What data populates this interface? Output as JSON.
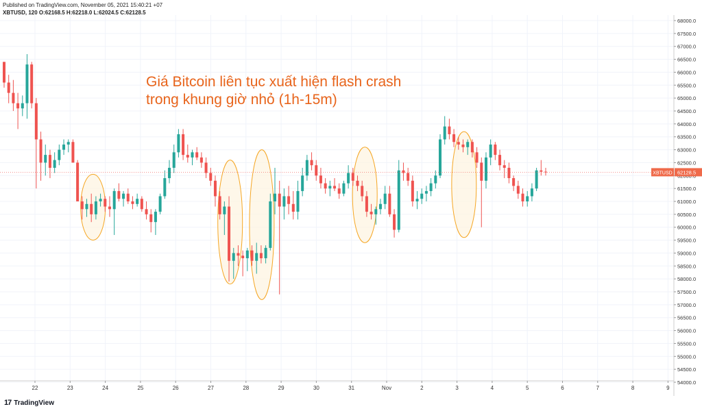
{
  "header": {
    "published": "Published on TradingView.com, November 05, 2021 15:40:21 +07",
    "ohlc": "XBTUSD, 120 O:62168.5 H:62218.0 L:62024.5 C:62128.5"
  },
  "footer": {
    "logo_mark": "17",
    "brand": "TradingView"
  },
  "colors": {
    "up": "#26a69a",
    "down": "#ef5350",
    "highlight_stroke": "#f5a623",
    "highlight_fill": "#fdf3e0",
    "price_label_bg": "#ef6a4a",
    "annotation": "#e8641b"
  },
  "chart_data": {
    "type": "candlestick",
    "symbol": "XBTUSD",
    "interval": "120",
    "title": "",
    "annotation": [
      "Giá Bitcoin liên tục xuất hiện flash crash",
      "trong khung giờ nhỏ (1h-15m)"
    ],
    "last_price": 62128.5,
    "last_price_label": "XBTUSD",
    "ylim": [
      54000,
      68000
    ],
    "y_ticks": [
      54000,
      54500,
      55000,
      55500,
      56000,
      56500,
      57000,
      57500,
      58000,
      58500,
      59000,
      59500,
      60000,
      60500,
      61000,
      61500,
      62000,
      62500,
      63000,
      63500,
      64000,
      64500,
      65000,
      65500,
      66000,
      66500,
      67000,
      67500,
      68000
    ],
    "y_tick_labels": [
      "54000.0",
      "54500.0",
      "55000.0",
      "55500.0",
      "56000.0",
      "56500.0",
      "57000.0",
      "57500.0",
      "58000.0",
      "58500.0",
      "59000.0",
      "59500.0",
      "60000.0",
      "60500.0",
      "61000.0",
      "61500.0",
      "62000.0",
      "62500.0",
      "63000.0",
      "63500.0",
      "64000.0",
      "64500.0",
      "65000.0",
      "65500.0",
      "66000.0",
      "66500.0",
      "67000.0",
      "67500.0",
      "68000.0"
    ],
    "xlim_days": [
      0.8,
      10.9
    ],
    "x_ticks": [
      {
        "day": 1,
        "label": "22"
      },
      {
        "day": 2,
        "label": "23"
      },
      {
        "day": 3,
        "label": "24"
      },
      {
        "day": 4,
        "label": "25"
      },
      {
        "day": 5,
        "label": "26"
      },
      {
        "day": 6,
        "label": "27"
      },
      {
        "day": 7,
        "label": "28"
      },
      {
        "day": 8,
        "label": "29"
      },
      {
        "day": 9,
        "label": "30"
      },
      {
        "day": 10,
        "label": "31"
      },
      {
        "day": 11,
        "label": "Nov"
      },
      {
        "day": 12,
        "label": "2"
      },
      {
        "day": 13,
        "label": "3"
      },
      {
        "day": 14,
        "label": "4"
      },
      {
        "day": 15,
        "label": "5"
      },
      {
        "day": 16,
        "label": "6"
      },
      {
        "day": 17,
        "label": "7"
      },
      {
        "day": 18,
        "label": "8"
      },
      {
        "day": 19,
        "label": "9"
      }
    ],
    "highlights": [
      {
        "day": 2.65,
        "low": 59500,
        "high": 62050
      },
      {
        "day": 6.55,
        "low": 57800,
        "high": 62600
      },
      {
        "day": 7.45,
        "low": 57200,
        "high": 63000
      },
      {
        "day": 10.38,
        "low": 59400,
        "high": 63100
      },
      {
        "day": 13.2,
        "low": 59600,
        "high": 63700
      }
    ],
    "candles": [
      [
        66400,
        66400,
        65400,
        65600
      ],
      [
        65600,
        65900,
        64800,
        65200
      ],
      [
        65200,
        65700,
        64500,
        64800
      ],
      [
        64800,
        65200,
        63800,
        64600
      ],
      [
        64600,
        65100,
        64300,
        64800
      ],
      [
        64800,
        66700,
        64200,
        66300
      ],
      [
        66300,
        66400,
        64600,
        64800
      ],
      [
        64800,
        65000,
        61500,
        63400
      ],
      [
        63400,
        63700,
        61800,
        62500
      ],
      [
        62500,
        63200,
        62000,
        62800
      ],
      [
        62800,
        63000,
        61900,
        62300
      ],
      [
        62300,
        62900,
        62100,
        62600
      ],
      [
        62600,
        63200,
        62400,
        63000
      ],
      [
        63000,
        63400,
        62800,
        63200
      ],
      [
        63200,
        63400,
        62900,
        63300
      ],
      [
        63300,
        63400,
        62500,
        62500
      ],
      [
        62500,
        62600,
        61000,
        61000
      ],
      [
        61000,
        61200,
        60300,
        60700
      ],
      [
        60700,
        61100,
        60400,
        60900
      ],
      [
        60900,
        61300,
        60200,
        60500
      ],
      [
        60500,
        61200,
        60300,
        61000
      ],
      [
        61000,
        61300,
        60800,
        61100
      ],
      [
        61100,
        61200,
        60600,
        60800
      ],
      [
        60800,
        61200,
        60400,
        60700
      ],
      [
        60700,
        61500,
        59700,
        61400
      ],
      [
        61400,
        61700,
        61000,
        61100
      ],
      [
        61100,
        61400,
        60800,
        61300
      ],
      [
        61300,
        61500,
        60900,
        61000
      ],
      [
        61000,
        61200,
        60700,
        60900
      ],
      [
        60900,
        61300,
        60800,
        61100
      ],
      [
        61100,
        61200,
        60600,
        60700
      ],
      [
        60700,
        61000,
        60300,
        60500
      ],
      [
        60500,
        60700,
        59800,
        60200
      ],
      [
        60200,
        60700,
        59700,
        60600
      ],
      [
        60600,
        61300,
        60500,
        61200
      ],
      [
        61200,
        62200,
        61100,
        61900
      ],
      [
        61900,
        62600,
        61700,
        62300
      ],
      [
        62300,
        63200,
        62100,
        62900
      ],
      [
        62900,
        63800,
        62700,
        63600
      ],
      [
        63600,
        63800,
        62600,
        62800
      ],
      [
        62800,
        63200,
        62500,
        62700
      ],
      [
        62700,
        63000,
        62400,
        62900
      ],
      [
        62900,
        63100,
        62600,
        62700
      ],
      [
        62700,
        62900,
        62300,
        62500
      ],
      [
        62500,
        62700,
        61900,
        62100
      ],
      [
        62100,
        62300,
        61600,
        61800
      ],
      [
        61800,
        62000,
        60800,
        61200
      ],
      [
        61200,
        61400,
        60300,
        60500
      ],
      [
        60500,
        61000,
        59700,
        60800
      ],
      [
        60800,
        61200,
        57900,
        58700
      ],
      [
        58700,
        59200,
        58000,
        59000
      ],
      [
        59000,
        59300,
        58500,
        58900
      ],
      [
        58900,
        59100,
        58100,
        58800
      ],
      [
        58800,
        59200,
        58300,
        59100
      ],
      [
        59100,
        59300,
        58500,
        58700
      ],
      [
        58700,
        59400,
        58200,
        59000
      ],
      [
        59000,
        59300,
        58600,
        58800
      ],
      [
        58800,
        59300,
        58600,
        59200
      ],
      [
        59200,
        61300,
        59100,
        61000
      ],
      [
        61000,
        62300,
        60500,
        61300
      ],
      [
        61300,
        61800,
        57400,
        60800
      ],
      [
        60800,
        61500,
        60300,
        61200
      ],
      [
        61200,
        61600,
        60500,
        60900
      ],
      [
        60900,
        61400,
        60300,
        60600
      ],
      [
        60600,
        61800,
        60300,
        61400
      ],
      [
        61400,
        62300,
        61200,
        62000
      ],
      [
        62000,
        62800,
        61800,
        62600
      ],
      [
        62600,
        62900,
        62200,
        62400
      ],
      [
        62400,
        62600,
        61800,
        62000
      ],
      [
        62000,
        62300,
        61500,
        61700
      ],
      [
        61700,
        61900,
        61300,
        61500
      ],
      [
        61500,
        61800,
        61200,
        61600
      ],
      [
        61600,
        61900,
        61400,
        61500
      ],
      [
        61500,
        61700,
        61100,
        61300
      ],
      [
        61300,
        61800,
        61200,
        61700
      ],
      [
        61700,
        62400,
        61500,
        62100
      ],
      [
        62100,
        62300,
        61600,
        61800
      ],
      [
        61800,
        62000,
        61400,
        61600
      ],
      [
        61600,
        61800,
        61000,
        61200
      ],
      [
        61200,
        61400,
        60400,
        60600
      ],
      [
        60600,
        60900,
        60300,
        60500
      ],
      [
        60500,
        60800,
        60100,
        60700
      ],
      [
        60700,
        61100,
        60500,
        60900
      ],
      [
        60900,
        61600,
        60700,
        61300
      ],
      [
        61300,
        61600,
        60400,
        60500
      ],
      [
        60500,
        60700,
        59600,
        59900
      ],
      [
        59900,
        62600,
        59800,
        62200
      ],
      [
        62200,
        62500,
        61800,
        62100
      ],
      [
        62100,
        62300,
        61600,
        61800
      ],
      [
        61800,
        62000,
        60800,
        61000
      ],
      [
        61000,
        61400,
        60700,
        61100
      ],
      [
        61100,
        61500,
        60900,
        61300
      ],
      [
        61300,
        61600,
        61000,
        61400
      ],
      [
        61400,
        61900,
        61200,
        61700
      ],
      [
        61700,
        62200,
        61500,
        62000
      ],
      [
        62000,
        63600,
        61900,
        63400
      ],
      [
        63400,
        64300,
        63200,
        63900
      ],
      [
        63900,
        64200,
        63400,
        63600
      ],
      [
        63600,
        63800,
        63100,
        63300
      ],
      [
        63300,
        63500,
        63000,
        63200
      ],
      [
        63200,
        63400,
        62900,
        63100
      ],
      [
        63100,
        63400,
        62800,
        63300
      ],
      [
        63300,
        63400,
        62700,
        62900
      ],
      [
        62900,
        63100,
        62300,
        62500
      ],
      [
        62500,
        62700,
        60000,
        61800
      ],
      [
        61800,
        62900,
        61500,
        62700
      ],
      [
        62700,
        63400,
        62400,
        63200
      ],
      [
        63200,
        63300,
        62600,
        62800
      ],
      [
        62800,
        63000,
        62200,
        62400
      ],
      [
        62400,
        62600,
        61900,
        62300
      ],
      [
        62300,
        62500,
        61700,
        61900
      ],
      [
        61900,
        62000,
        61400,
        61600
      ],
      [
        61600,
        61800,
        61100,
        61300
      ],
      [
        61300,
        61500,
        60800,
        61000
      ],
      [
        61000,
        61400,
        60800,
        61200
      ],
      [
        61200,
        61700,
        61000,
        61500
      ],
      [
        61500,
        62300,
        61400,
        62200
      ],
      [
        62200,
        62600,
        62000,
        62150
      ],
      [
        62150,
        62300,
        62000,
        62128.5
      ]
    ]
  }
}
